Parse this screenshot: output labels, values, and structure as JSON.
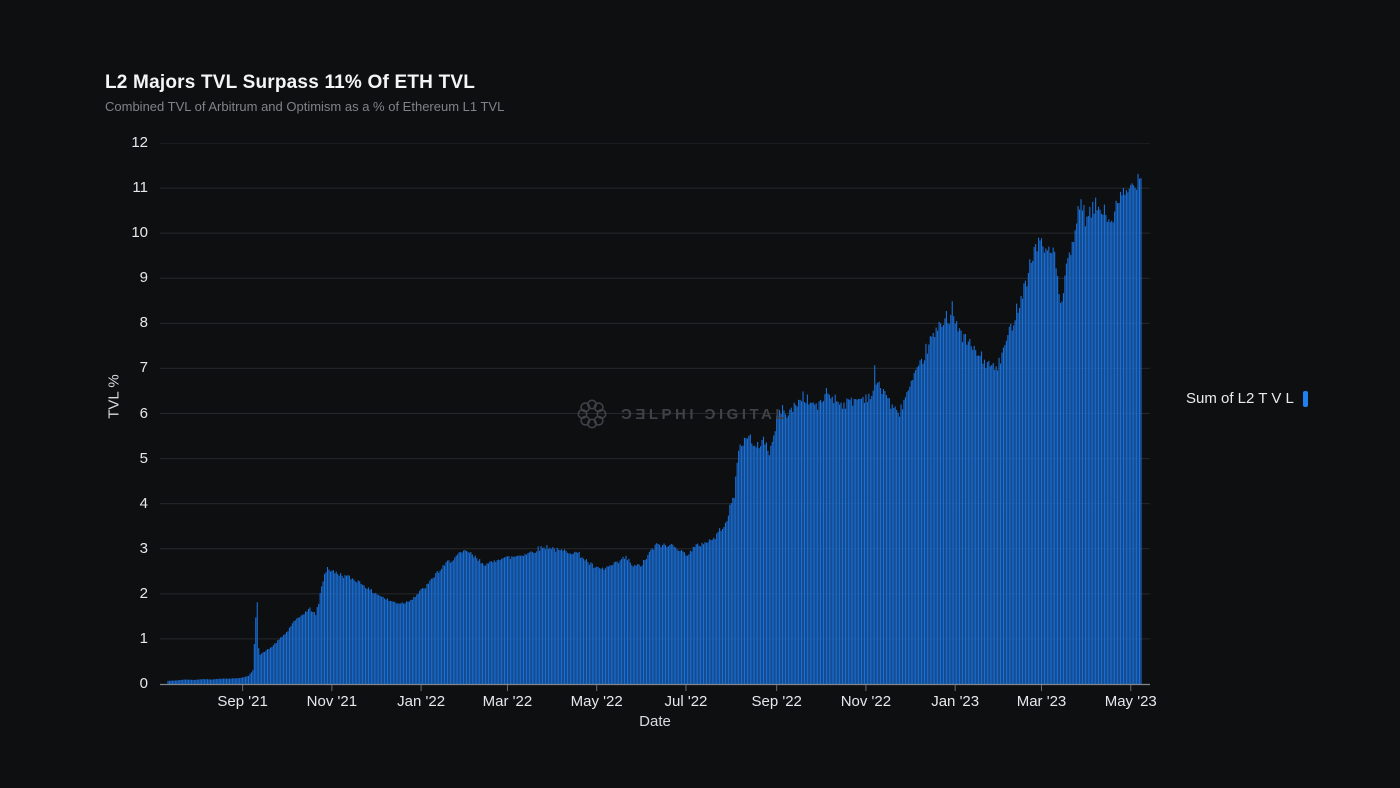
{
  "header": {
    "title": "L2 Majors TVL Surpass 11% Of ETH TVL",
    "subtitle": "Combined TVL of Arbitrum and Optimism as a % of Ethereum L1 TVL"
  },
  "legend": {
    "label": "Sum of L2 T V L",
    "marker_color": "#2180ef"
  },
  "watermark": {
    "text": "ƆƎLPHI ƆIGITAL"
  },
  "colors": {
    "background": "#0e0f11",
    "bar": "#1a70d9",
    "grid": "#26282d",
    "axis": "#81868d",
    "tick": "#6a6f76",
    "text_primary": "#e6e8eb",
    "text_muted": "#7f8389",
    "watermark": "#3e4248"
  },
  "chart_data": {
    "type": "bar",
    "title": "L2 Majors TVL Surpass 11% Of ETH TVL",
    "subtitle": "Combined TVL of Arbitrum and Optimism as a % of Ethereum L1 TVL",
    "xlabel": "Date",
    "ylabel": "TVL %",
    "ylim": [
      0,
      12
    ],
    "yticks": [
      0,
      1,
      2,
      3,
      4,
      5,
      6,
      7,
      8,
      9,
      10,
      11,
      12
    ],
    "grid": true,
    "legend_position": "right",
    "x_axis": {
      "tick_labels": [
        "Sep '21",
        "Nov '21",
        "Jan '22",
        "Mar '22",
        "May '22",
        "Jul '22",
        "Sep '22",
        "Nov '22",
        "Jan '23",
        "Mar '23",
        "May '23"
      ],
      "tick_days": [
        51,
        112,
        173,
        232,
        293,
        354,
        416,
        477,
        538,
        597,
        658
      ],
      "days_total": 666,
      "start_note": "daily bars, ~mid-Jul 2021 through ~8 May 2023"
    },
    "series": [
      {
        "name": "Sum of L2 TVL",
        "color": "#1a70d9",
        "interpolation": "linear-daily",
        "noise_pct": 2,
        "anchors": [
          [
            0,
            0.07
          ],
          [
            6,
            0.08
          ],
          [
            12,
            0.1
          ],
          [
            18,
            0.09
          ],
          [
            24,
            0.11
          ],
          [
            30,
            0.1
          ],
          [
            36,
            0.12
          ],
          [
            42,
            0.12
          ],
          [
            48,
            0.13
          ],
          [
            52,
            0.15
          ],
          [
            55,
            0.18
          ],
          [
            58,
            0.3
          ],
          [
            60,
            1.5
          ],
          [
            61,
            1.85
          ],
          [
            62,
            0.8
          ],
          [
            63,
            0.65
          ],
          [
            66,
            0.72
          ],
          [
            70,
            0.8
          ],
          [
            74,
            0.92
          ],
          [
            78,
            1.05
          ],
          [
            82,
            1.18
          ],
          [
            85,
            1.35
          ],
          [
            89,
            1.45
          ],
          [
            92,
            1.55
          ],
          [
            95,
            1.62
          ],
          [
            97,
            1.67
          ],
          [
            99,
            1.6
          ],
          [
            101,
            1.55
          ],
          [
            103,
            1.8
          ],
          [
            104,
            2.0
          ],
          [
            106,
            2.3
          ],
          [
            107,
            2.45
          ],
          [
            109,
            2.58
          ],
          [
            112,
            2.5
          ],
          [
            116,
            2.45
          ],
          [
            120,
            2.4
          ],
          [
            123,
            2.38
          ],
          [
            127,
            2.32
          ],
          [
            130,
            2.28
          ],
          [
            134,
            2.2
          ],
          [
            137,
            2.1
          ],
          [
            140,
            2.05
          ],
          [
            143,
            2.0
          ],
          [
            147,
            1.92
          ],
          [
            150,
            1.87
          ],
          [
            153,
            1.83
          ],
          [
            157,
            1.8
          ],
          [
            160,
            1.8
          ],
          [
            163,
            1.82
          ],
          [
            166,
            1.88
          ],
          [
            169,
            1.95
          ],
          [
            172,
            2.05
          ],
          [
            176,
            2.15
          ],
          [
            180,
            2.3
          ],
          [
            183,
            2.45
          ],
          [
            187,
            2.55
          ],
          [
            191,
            2.7
          ],
          [
            195,
            2.78
          ],
          [
            198,
            2.85
          ],
          [
            202,
            2.92
          ],
          [
            205,
            2.95
          ],
          [
            208,
            2.85
          ],
          [
            212,
            2.75
          ],
          [
            216,
            2.68
          ],
          [
            219,
            2.65
          ],
          [
            223,
            2.72
          ],
          [
            226,
            2.8
          ],
          [
            232,
            2.8
          ],
          [
            236,
            2.82
          ],
          [
            239,
            2.85
          ],
          [
            243,
            2.88
          ],
          [
            246,
            2.9
          ],
          [
            250,
            2.95
          ],
          [
            253,
            3.0
          ],
          [
            257,
            3.03
          ],
          [
            260,
            3.05
          ],
          [
            264,
            3.0
          ],
          [
            267,
            2.95
          ],
          [
            271,
            2.95
          ],
          [
            274,
            2.95
          ],
          [
            277,
            2.92
          ],
          [
            280,
            2.9
          ],
          [
            284,
            2.8
          ],
          [
            287,
            2.7
          ],
          [
            291,
            2.6
          ],
          [
            294,
            2.55
          ],
          [
            298,
            2.55
          ],
          [
            301,
            2.6
          ],
          [
            305,
            2.65
          ],
          [
            308,
            2.7
          ],
          [
            311,
            2.78
          ],
          [
            313,
            2.8
          ],
          [
            316,
            2.7
          ],
          [
            318,
            2.6
          ],
          [
            321,
            2.62
          ],
          [
            324,
            2.65
          ],
          [
            327,
            2.8
          ],
          [
            330,
            2.95
          ],
          [
            333,
            3.05
          ],
          [
            335,
            3.1
          ],
          [
            338,
            3.08
          ],
          [
            341,
            3.05
          ],
          [
            344,
            3.08
          ],
          [
            346,
            3.1
          ],
          [
            349,
            3.0
          ],
          [
            352,
            2.9
          ],
          [
            356,
            2.9
          ],
          [
            359,
            3.0
          ],
          [
            361,
            3.05
          ],
          [
            364,
            3.1
          ],
          [
            367,
            3.15
          ],
          [
            370,
            3.18
          ],
          [
            372,
            3.2
          ],
          [
            375,
            3.3
          ],
          [
            378,
            3.45
          ],
          [
            380,
            3.55
          ],
          [
            382,
            3.65
          ],
          [
            384,
            3.9
          ],
          [
            385,
            4.0
          ],
          [
            387,
            4.15
          ],
          [
            389,
            5.0
          ],
          [
            391,
            5.25
          ],
          [
            393,
            5.35
          ],
          [
            395,
            5.45
          ],
          [
            397,
            5.6
          ],
          [
            399,
            5.35
          ],
          [
            400,
            5.2
          ],
          [
            402,
            5.25
          ],
          [
            404,
            5.3
          ],
          [
            406,
            5.4
          ],
          [
            407,
            5.45
          ],
          [
            409,
            5.3
          ],
          [
            411,
            5.15
          ],
          [
            413,
            5.35
          ],
          [
            414,
            5.5
          ],
          [
            416,
            5.85
          ],
          [
            419,
            6.1
          ],
          [
            421,
            6.05
          ],
          [
            424,
            6.0
          ],
          [
            427,
            6.1
          ],
          [
            429,
            6.2
          ],
          [
            432,
            6.3
          ],
          [
            434,
            6.4
          ],
          [
            436,
            6.32
          ],
          [
            439,
            6.25
          ],
          [
            442,
            6.2
          ],
          [
            445,
            6.15
          ],
          [
            448,
            6.35
          ],
          [
            450,
            6.5
          ],
          [
            452,
            6.42
          ],
          [
            455,
            6.35
          ],
          [
            458,
            6.28
          ],
          [
            462,
            6.2
          ],
          [
            465,
            6.25
          ],
          [
            469,
            6.3
          ],
          [
            472,
            6.32
          ],
          [
            475,
            6.35
          ],
          [
            478,
            6.38
          ],
          [
            480,
            6.4
          ],
          [
            482,
            6.45
          ],
          [
            483,
            6.95
          ],
          [
            484,
            6.7
          ],
          [
            486,
            6.6
          ],
          [
            488,
            6.55
          ],
          [
            490,
            6.5
          ],
          [
            492,
            6.35
          ],
          [
            494,
            6.2
          ],
          [
            496,
            6.1
          ],
          [
            498,
            6.0
          ],
          [
            500,
            6.05
          ],
          [
            501,
            6.1
          ],
          [
            503,
            6.3
          ],
          [
            506,
            6.5
          ],
          [
            509,
            6.7
          ],
          [
            512,
            6.9
          ],
          [
            514,
            7.05
          ],
          [
            516,
            7.2
          ],
          [
            518,
            7.4
          ],
          [
            521,
            7.6
          ],
          [
            523,
            7.7
          ],
          [
            525,
            7.8
          ],
          [
            527,
            7.9
          ],
          [
            529,
            8.0
          ],
          [
            531,
            8.15
          ],
          [
            532,
            8.2
          ],
          [
            534,
            8.1
          ],
          [
            536,
            8.45
          ],
          [
            538,
            7.95
          ],
          [
            539,
            7.9
          ],
          [
            541,
            7.8
          ],
          [
            544,
            7.7
          ],
          [
            546,
            7.6
          ],
          [
            549,
            7.5
          ],
          [
            551,
            7.4
          ],
          [
            554,
            7.3
          ],
          [
            557,
            7.2
          ],
          [
            560,
            7.1
          ],
          [
            563,
            7.05
          ],
          [
            565,
            7.0
          ],
          [
            567,
            7.05
          ],
          [
            568,
            7.1
          ],
          [
            570,
            7.3
          ],
          [
            572,
            7.5
          ],
          [
            574,
            7.7
          ],
          [
            576,
            7.9
          ],
          [
            578,
            8.1
          ],
          [
            580,
            8.3
          ],
          [
            582,
            8.5
          ],
          [
            585,
            8.8
          ],
          [
            587,
            9.0
          ],
          [
            589,
            9.3
          ],
          [
            591,
            9.5
          ],
          [
            593,
            9.7
          ],
          [
            595,
            9.85
          ],
          [
            597,
            9.75
          ],
          [
            599,
            9.6
          ],
          [
            601,
            9.65
          ],
          [
            604,
            9.7
          ],
          [
            606,
            9.5
          ],
          [
            607,
            9.3
          ],
          [
            608,
            8.9
          ],
          [
            609,
            8.5
          ],
          [
            611,
            8.45
          ],
          [
            613,
            9.0
          ],
          [
            615,
            9.3
          ],
          [
            616,
            9.5
          ],
          [
            618,
            9.65
          ],
          [
            619,
            9.8
          ],
          [
            620,
            9.9
          ],
          [
            622,
            10.75
          ],
          [
            623,
            10.6
          ],
          [
            625,
            10.5
          ],
          [
            627,
            10.35
          ],
          [
            628,
            10.3
          ],
          [
            630,
            10.38
          ],
          [
            631,
            10.45
          ],
          [
            633,
            10.55
          ],
          [
            634,
            10.6
          ],
          [
            636,
            10.58
          ],
          [
            638,
            10.55
          ],
          [
            640,
            10.45
          ],
          [
            641,
            10.35
          ],
          [
            643,
            10.3
          ],
          [
            645,
            10.3
          ],
          [
            647,
            10.45
          ],
          [
            648,
            10.55
          ],
          [
            650,
            10.65
          ],
          [
            651,
            10.75
          ],
          [
            653,
            10.85
          ],
          [
            655,
            10.9
          ],
          [
            657,
            10.95
          ],
          [
            658,
            11.0
          ],
          [
            660,
            11.1
          ],
          [
            661,
            11.15
          ],
          [
            663,
            11.22
          ],
          [
            665,
            11.3
          ]
        ]
      }
    ]
  }
}
